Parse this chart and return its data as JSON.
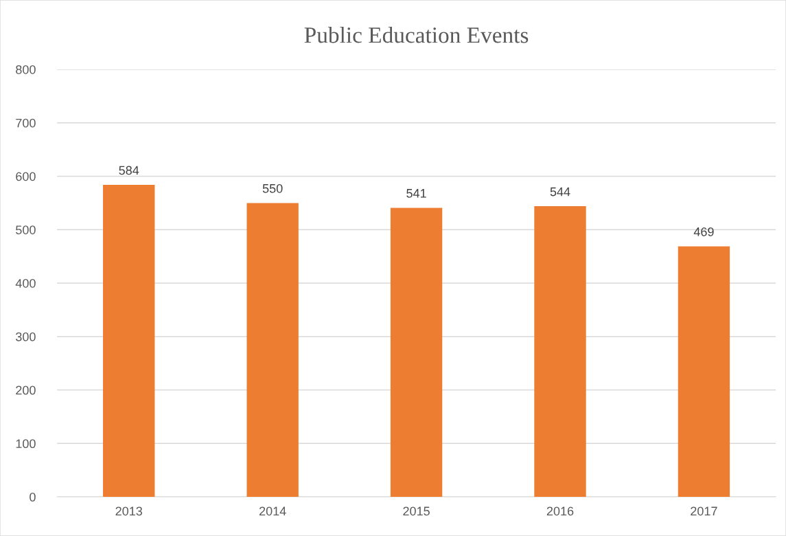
{
  "chart_data": {
    "type": "bar",
    "title": "Public Education Events",
    "categories": [
      "2013",
      "2014",
      "2015",
      "2016",
      "2017"
    ],
    "values": [
      584,
      550,
      541,
      544,
      469
    ],
    "color": "#ed7d31",
    "ylim": [
      0,
      800
    ],
    "yticks": [
      0,
      100,
      200,
      300,
      400,
      500,
      600,
      700,
      800
    ],
    "grid": "y",
    "data_labels": true
  }
}
